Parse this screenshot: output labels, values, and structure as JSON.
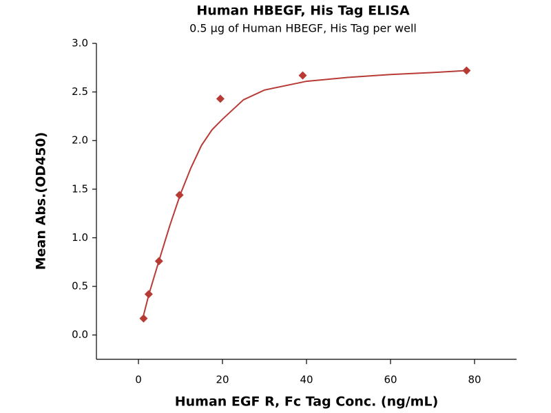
{
  "chart_data": {
    "type": "scatter",
    "title": "Human HBEGF, His Tag ELISA",
    "subtitle": "0.5 μg of Human HBEGF, His Tag per well",
    "x_label": "Human EGF R, Fc Tag Conc. (ng/mL)",
    "y_label": "Mean Abs.(OD450)",
    "color": "#b83a35",
    "x": [
      1.22,
      2.44,
      4.88,
      9.77,
      19.5,
      39.1,
      78.1
    ],
    "values": [
      0.17,
      0.42,
      0.76,
      1.44,
      2.43,
      2.67,
      2.72
    ],
    "curve": {
      "x": [
        1.2,
        2.5,
        5,
        7.5,
        10,
        12.5,
        15,
        17.5,
        20,
        25,
        30,
        40,
        50,
        60,
        70,
        78.1
      ],
      "y": [
        0.2,
        0.42,
        0.78,
        1.13,
        1.45,
        1.72,
        1.95,
        2.11,
        2.22,
        2.42,
        2.52,
        2.61,
        2.65,
        2.68,
        2.7,
        2.72
      ]
    },
    "xlim": [
      -10,
      90
    ],
    "xticks": [
      0,
      20,
      40,
      60,
      80
    ],
    "ylim": [
      -0.25,
      3.0
    ],
    "yticks": [
      {
        "value": 0,
        "label": "0.0"
      },
      0.5,
      {
        "value": 1,
        "label": "1.0"
      },
      1.5,
      {
        "value": 2,
        "label": "2.0"
      },
      2.5,
      {
        "value": 3,
        "label": "3.0"
      }
    ]
  }
}
